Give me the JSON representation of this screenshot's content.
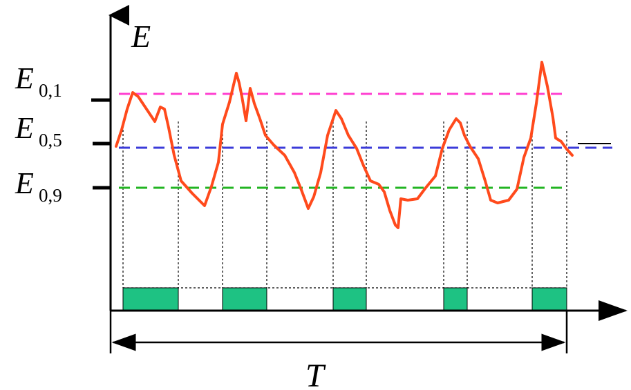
{
  "y_axis_label": "E",
  "x_span_label": "T",
  "levels": [
    {
      "id": "e01",
      "base": "E",
      "subscript": "0,1",
      "color": "#ff3fd0"
    },
    {
      "id": "e05",
      "base": "E",
      "subscript": "0,5",
      "color": "#3b3bd9"
    },
    {
      "id": "e09",
      "base": "E",
      "subscript": "0,9",
      "color": "#22b422"
    }
  ],
  "signal_color": "#ff4a1c",
  "segment_fill_color": "#1ec283"
}
